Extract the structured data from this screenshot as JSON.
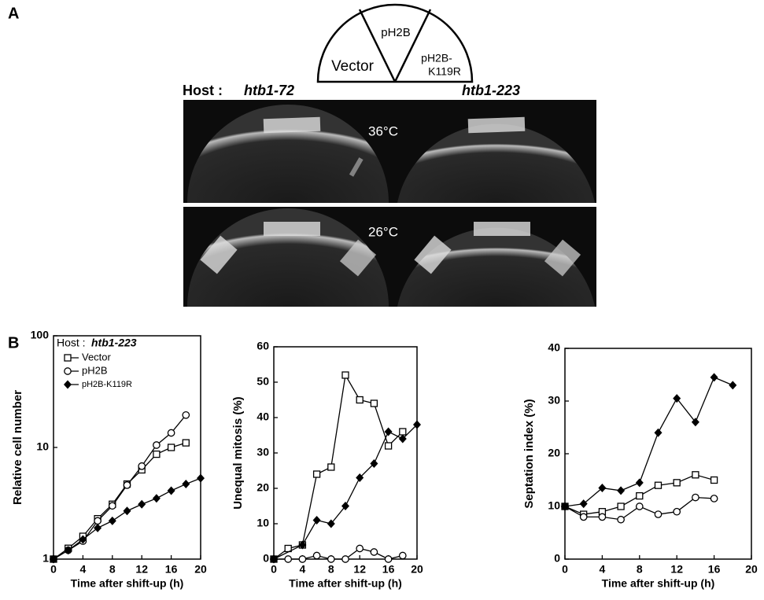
{
  "panels": {
    "a": "A",
    "b": "B"
  },
  "diagram": {
    "left": "Vector",
    "top": "pH2B",
    "right_1": "pH2B-",
    "right_2": "K119R"
  },
  "host_label": "Host :",
  "hosts": [
    "htb1-72",
    "htb1-223"
  ],
  "temperatures": [
    "36°C",
    "26°C"
  ],
  "chart_data": [
    {
      "type": "line",
      "ylabel": "Relative cell number",
      "xlabel": "Time after shift-up (h)",
      "log_y": true,
      "xlim": [
        0,
        20
      ],
      "xticks": [
        0,
        4,
        8,
        12,
        16,
        20
      ],
      "ylim": [
        1,
        100
      ],
      "yticks": [
        1,
        10,
        100
      ],
      "legend_title": "Host :",
      "legend_host": "htb1-223",
      "legend": "upper left",
      "series": [
        {
          "name": "Vector",
          "color": "#000000",
          "marker": "square",
          "x": [
            0,
            2,
            4,
            6,
            8,
            10,
            12,
            14,
            16,
            18
          ],
          "values": [
            1,
            1.25,
            1.6,
            2.3,
            3.1,
            4.7,
            6.3,
            8.7,
            10,
            11
          ]
        },
        {
          "name": "pH2B",
          "color": "#000000",
          "marker": "circle",
          "x": [
            0,
            2,
            4,
            6,
            8,
            10,
            12,
            14,
            16,
            18
          ],
          "values": [
            1,
            1.2,
            1.45,
            2.2,
            3,
            4.6,
            6.8,
            10.5,
            13.5,
            19.5
          ]
        },
        {
          "name": "pH2B-K119R",
          "color": "#000000",
          "marker": "diamond",
          "x": [
            0,
            2,
            4,
            6,
            8,
            10,
            12,
            14,
            16,
            18,
            20
          ],
          "values": [
            1,
            1.2,
            1.5,
            1.9,
            2.2,
            2.7,
            3.1,
            3.5,
            4.1,
            4.7,
            5.3
          ]
        }
      ]
    },
    {
      "type": "line",
      "ylabel": "Unequal mitosis (%)",
      "xlabel": "Time after shift-up (h)",
      "xlim": [
        0,
        20
      ],
      "xticks": [
        0,
        4,
        8,
        12,
        16,
        20
      ],
      "ylim": [
        0,
        60
      ],
      "yticks": [
        0,
        10,
        20,
        30,
        40,
        50,
        60
      ],
      "series": [
        {
          "color": "#000000",
          "marker": "square",
          "x": [
            0,
            2,
            4,
            6,
            8,
            10,
            12,
            14,
            16,
            18
          ],
          "values": [
            0,
            3,
            4,
            24,
            26,
            52,
            45,
            44,
            32,
            36
          ]
        },
        {
          "color": "#000000",
          "marker": "circle",
          "x": [
            0,
            2,
            4,
            6,
            8,
            10,
            12,
            14,
            16,
            18
          ],
          "values": [
            0,
            0,
            0,
            1,
            0,
            0,
            3,
            2,
            0,
            1
          ]
        },
        {
          "color": "#000000",
          "marker": "diamond",
          "x": [
            0,
            4,
            6,
            8,
            10,
            12,
            14,
            16,
            18,
            20
          ],
          "values": [
            0,
            4,
            11,
            10,
            15,
            23,
            27,
            36,
            34,
            38
          ]
        }
      ]
    },
    {
      "type": "line",
      "ylabel": "Septation index (%)",
      "xlabel": "Time after shift-up (h)",
      "xlim": [
        0,
        20
      ],
      "xticks": [
        0,
        4,
        8,
        12,
        16,
        20
      ],
      "ylim": [
        0,
        40
      ],
      "yticks": [
        0,
        10,
        20,
        30,
        40
      ],
      "series": [
        {
          "color": "#000000",
          "marker": "square",
          "x": [
            0,
            2,
            4,
            6,
            8,
            10,
            12,
            14,
            16
          ],
          "values": [
            10,
            8.5,
            9,
            10,
            12,
            14,
            14.5,
            16,
            15
          ]
        },
        {
          "color": "#000000",
          "marker": "circle",
          "x": [
            0,
            2,
            4,
            6,
            8,
            10,
            12,
            14,
            16
          ],
          "values": [
            10,
            8,
            8,
            7.5,
            10,
            8.5,
            9,
            11.7,
            11.5
          ]
        },
        {
          "color": "#000000",
          "marker": "diamond",
          "x": [
            0,
            2,
            4,
            6,
            8,
            10,
            12,
            14,
            16,
            18
          ],
          "values": [
            10,
            10.5,
            13.5,
            13,
            14.5,
            24,
            30.5,
            26,
            34.5,
            33
          ]
        }
      ]
    }
  ]
}
